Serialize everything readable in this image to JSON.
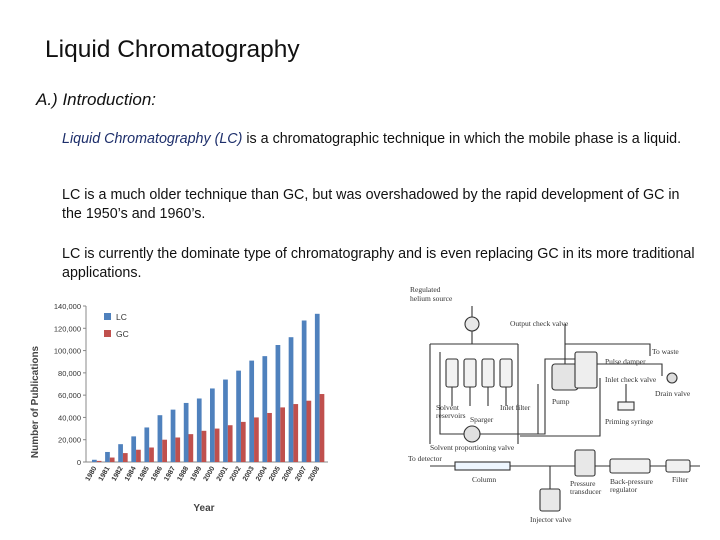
{
  "slide": {
    "title": "Liquid Chromatography",
    "section": "A.) Introduction:",
    "p1_term": "Liquid Chromatography (LC)",
    "p1_rest": " is a chromatographic technique in which the mobile phase is a liquid.",
    "p2": "LC is a much older technique than GC, but was overshadowed by the rapid development of GC in the 1950’s and 1960’s.",
    "p3": "LC is currently the dominate type of chromatography and is even replacing GC in its more traditional applications."
  },
  "chart_data": {
    "type": "bar",
    "categories": [
      "1980",
      "1981",
      "1982",
      "1984",
      "1985",
      "1986",
      "1987",
      "1988",
      "1999",
      "2000",
      "2001",
      "2002",
      "2003",
      "2004",
      "2005",
      "2006",
      "2007",
      "2008"
    ],
    "series": [
      {
        "name": "LC",
        "color": "#4f81bd",
        "values": [
          2000,
          9000,
          16000,
          23000,
          31000,
          42000,
          47000,
          53000,
          57000,
          66000,
          74000,
          82000,
          91000,
          95000,
          105000,
          112000,
          127000,
          133000
        ]
      },
      {
        "name": "GC",
        "color": "#c0504d",
        "values": [
          1000,
          4000,
          8000,
          11000,
          13000,
          20000,
          22000,
          25000,
          28000,
          30000,
          33000,
          36000,
          40000,
          44000,
          49000,
          52000,
          55000,
          61000
        ]
      }
    ],
    "ylabel": "Number of Publications",
    "xlabel": "Year",
    "yticks": [
      "0",
      "20,000",
      "40,000",
      "60,000",
      "80,000",
      "100,000",
      "120,000",
      "140,000"
    ],
    "ylim": [
      0,
      140000
    ],
    "legend": "top-left",
    "grid": false
  },
  "diagram": {
    "labels": {
      "regulated": "Regulated",
      "helium": "helium source",
      "output_check": "Output check valve",
      "pulse_damper": "Pulse damper",
      "inlet_check": "Inlet check valve",
      "to_waste": "To waste",
      "drain_valve": "Drain valve",
      "solvent": "Solvent",
      "reservoirs": "reservoirs",
      "sparger": "Sparger",
      "inlet_filter": "Inlet filter",
      "pump": "Pump",
      "priming": "Priming syringe",
      "proportioning": "Solvent proportioning valve",
      "to_detector": "To detector",
      "column": "Column",
      "pressure": "Pressure",
      "transducer": "transducer",
      "back_pressure": "Back-pressure",
      "regulator": "regulator",
      "filter": "Filter",
      "injector": "Injector valve"
    }
  }
}
